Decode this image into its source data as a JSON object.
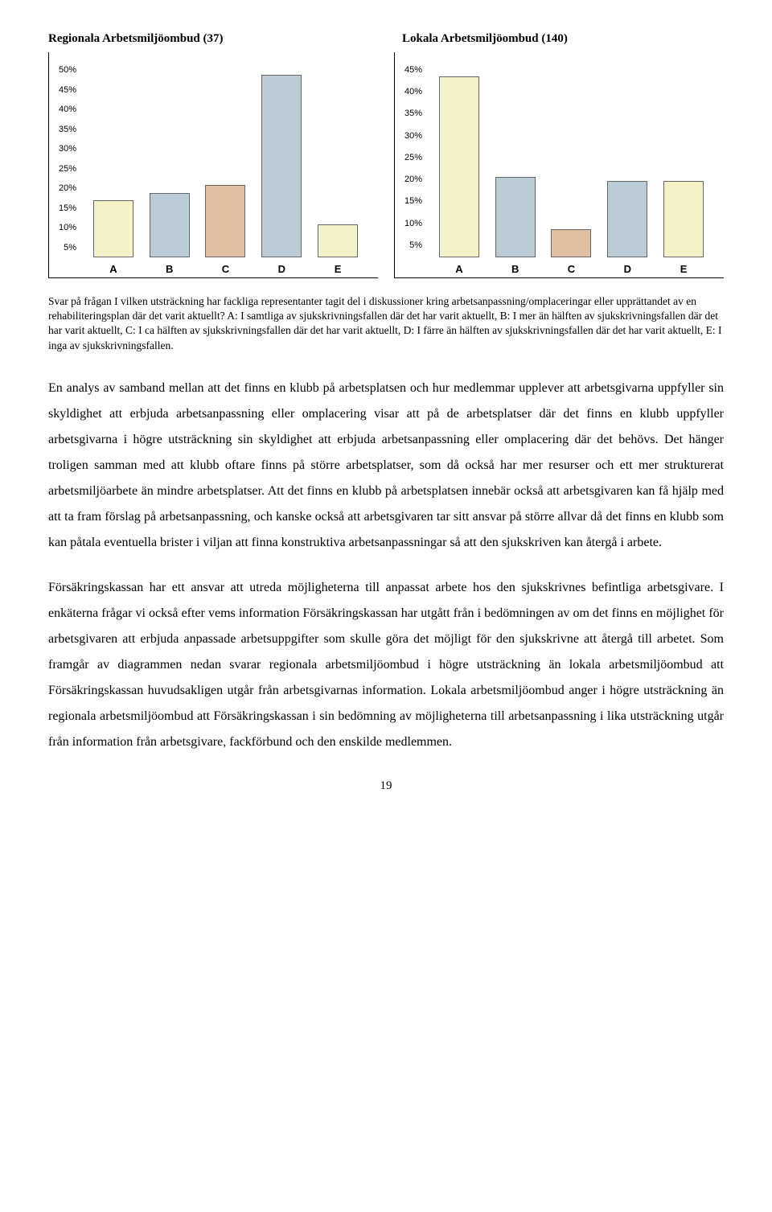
{
  "chart_left": {
    "title": "Regionala Arbetsmiljöombud (37)",
    "type": "bar",
    "ymax": 50,
    "ymin": 5,
    "ytick_step": 5,
    "categories": [
      "A",
      "B",
      "C",
      "D",
      "E"
    ],
    "values": [
      14,
      16,
      18,
      46,
      8
    ],
    "bar_colors": [
      "#f4f2c8",
      "#bcccd6",
      "#e0bfa2",
      "#bcccd6",
      "#f4f2c8"
    ],
    "axis_font": "Arial",
    "background": "#ffffff",
    "border_color": "#666666"
  },
  "chart_right": {
    "title": "Lokala Arbetsmiljöombud  (140)",
    "type": "bar",
    "ymax": 45,
    "ymin": 5,
    "ytick_step": 5,
    "categories": [
      "A",
      "B",
      "C",
      "D",
      "E"
    ],
    "values": [
      41,
      18,
      6,
      17,
      17
    ],
    "bar_colors": [
      "#f4f2c8",
      "#bcccd6",
      "#e0bfa2",
      "#bcccd6",
      "#f4f2c8"
    ],
    "axis_font": "Arial",
    "background": "#ffffff",
    "border_color": "#666666"
  },
  "caption": "Svar på frågan I vilken utsträckning har fackliga representanter tagit del i diskussioner kring arbetsanpassning/omplaceringar eller upprättandet av en rehabiliteringsplan där det varit aktuellt? A: I samtliga av sjukskrivningsfallen där det har varit aktuellt, B: I mer än hälften av sjukskrivningsfallen där det har varit aktuellt, C: I ca hälften av sjukskrivningsfallen där det har varit aktuellt, D: I färre än hälften av sjukskrivningsfallen där det har varit aktuellt, E: I inga av sjukskrivningsfallen.",
  "para1": "En analys av samband mellan att det finns en klubb på arbetsplatsen och hur medlemmar upplever att arbetsgivarna uppfyller sin skyldighet att erbjuda arbetsanpassning eller omplacering visar att på de arbetsplatser där det finns en klubb uppfyller arbetsgivarna i högre utsträckning sin skyldighet att erbjuda arbetsanpassning eller omplacering där det behövs. Det hänger troligen samman med att klubb oftare finns på större arbetsplatser, som då också har mer resurser och ett mer strukturerat arbetsmiljöarbete än mindre arbetsplatser. Att det finns en klubb på arbetsplatsen innebär också att arbetsgivaren kan få hjälp med att ta fram förslag på arbetsanpassning, och kanske också att arbetsgivaren tar sitt ansvar på större allvar då det finns en klubb som kan påtala eventuella brister i viljan att finna konstruktiva arbetsanpassningar så att den sjukskriven kan återgå i arbete.",
  "para2": "Försäkringskassan har ett ansvar att utreda möjligheterna till anpassat arbete hos den sjukskrivnes befintliga arbetsgivare. I enkäterna frågar vi också efter vems information Försäkringskassan har utgått från i bedömningen av om det finns en möjlighet för arbetsgivaren att erbjuda anpassade arbetsuppgifter som skulle göra det möjligt för den sjukskrivne att återgå till arbetet. Som framgår av diagrammen nedan svarar regionala arbetsmiljöombud i högre utsträckning än lokala arbetsmiljöombud att Försäkringskassan huvudsakligen utgår från arbetsgivarnas information. Lokala arbetsmiljöombud anger i högre utsträckning än regionala arbetsmiljöombud att Försäkringskassan i sin bedömning av möjligheterna till arbetsanpassning i lika utsträckning utgår från information från arbetsgivare, fackförbund och den enskilde medlemmen.",
  "page_number": "19"
}
